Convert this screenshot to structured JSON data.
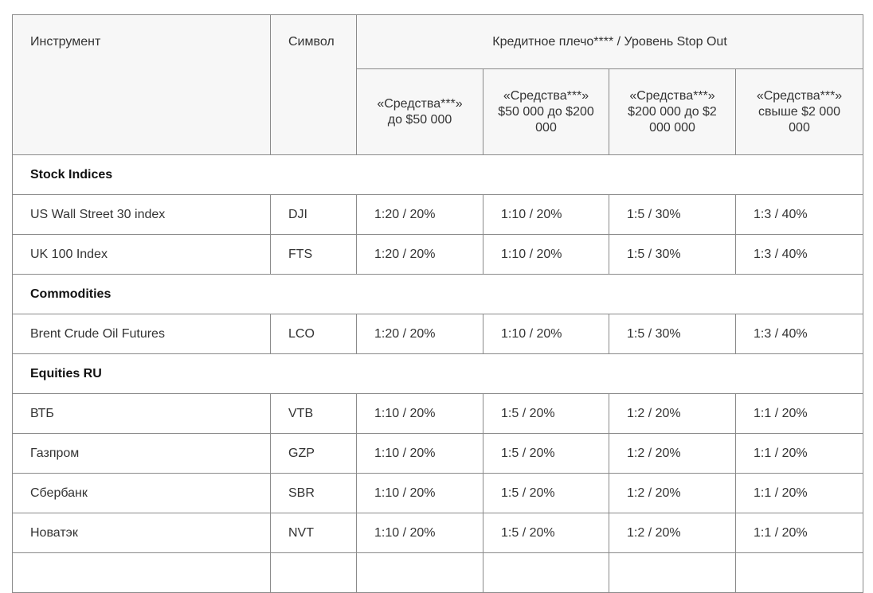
{
  "header": {
    "instrument": "Инструмент",
    "symbol": "Символ",
    "leverage": "Кредитное плечо**** / Уровень Stop Out",
    "tiers": [
      "«Средства***» до $50 000",
      "«Средства***» $50 000 до $200 000",
      "«Средства***» $200 000 до $2 000 000",
      "«Средства***» свыше $2 000 000"
    ]
  },
  "groups": [
    {
      "title": "Stock Indices",
      "rows": [
        {
          "name": "US Wall Street 30 index",
          "symbol": "DJI",
          "values": [
            "1:20 / 20%",
            "1:10 / 20%",
            "1:5 / 30%",
            "1:3 / 40%"
          ]
        },
        {
          "name": "UK 100 Index",
          "symbol": "FTS",
          "values": [
            "1:20 / 20%",
            "1:10 / 20%",
            "1:5 / 30%",
            "1:3 / 40%"
          ]
        }
      ]
    },
    {
      "title": "Commodities",
      "rows": [
        {
          "name": "Brent Crude Oil Futures",
          "symbol": "LCO",
          "values": [
            "1:20 / 20%",
            "1:10 / 20%",
            "1:5 / 30%",
            "1:3 / 40%"
          ]
        }
      ]
    },
    {
      "title": "Equities RU",
      "rows": [
        {
          "name": "ВТБ",
          "symbol": "VTB",
          "values": [
            "1:10 / 20%",
            "1:5 / 20%",
            "1:2 / 20%",
            "1:1 / 20%"
          ]
        },
        {
          "name": "Газпром",
          "symbol": "GZP",
          "values": [
            "1:10 / 20%",
            "1:5 / 20%",
            "1:2 / 20%",
            "1:1 / 20%"
          ]
        },
        {
          "name": "Сбербанк",
          "symbol": "SBR",
          "values": [
            "1:10 / 20%",
            "1:5 / 20%",
            "1:2 / 20%",
            "1:1 / 20%"
          ]
        },
        {
          "name": "Новатэк",
          "symbol": "NVT",
          "values": [
            "1:10 / 20%",
            "1:5 / 20%",
            "1:2 / 20%",
            "1:1 / 20%"
          ]
        }
      ]
    }
  ]
}
